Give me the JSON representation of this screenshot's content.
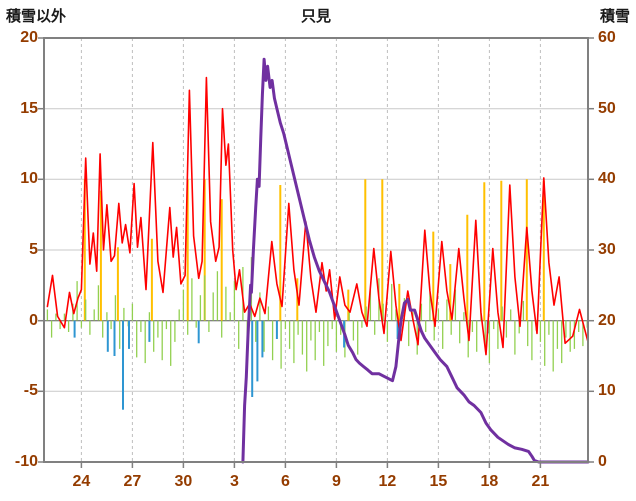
{
  "colors": {
    "red": "#FF0000",
    "orange": "#FFC000",
    "green": "#92D050",
    "blue": "#2E96D2",
    "purple": "#7030A0",
    "grid": "#C9C9C9",
    "grid_dash": "#BFBFBF",
    "border": "#808080",
    "zero_line": "#595959",
    "tick_label": "#943C00",
    "title": "#1A1A1A",
    "background": "#FFFFFF"
  },
  "chart_data": {
    "type": "line",
    "title": "只見",
    "legend": "none",
    "grid": "on",
    "left_axis": {
      "label": "積雪以外",
      "range": [
        -10,
        20
      ],
      "ticks": [
        20,
        15,
        10,
        5,
        0,
        -5,
        -10
      ]
    },
    "right_axis": {
      "label": "積雪",
      "range": [
        0,
        60
      ],
      "ticks": [
        60,
        50,
        40,
        30,
        20,
        10,
        0
      ]
    },
    "x_axis": {
      "range": [
        21.8,
        53.8
      ],
      "ticks": [
        {
          "value": 24,
          "label": "24"
        },
        {
          "value": 27,
          "label": "27"
        },
        {
          "value": 30,
          "label": "30"
        },
        {
          "value": 33,
          "label": "3"
        },
        {
          "value": 36,
          "label": "6"
        },
        {
          "value": 39,
          "label": "9"
        },
        {
          "value": 42,
          "label": "12"
        },
        {
          "value": 45,
          "label": "15"
        },
        {
          "value": 48,
          "label": "18"
        },
        {
          "value": 51,
          "label": "21"
        }
      ]
    },
    "series": [
      {
        "name": "orange-spike-series",
        "axis": "left",
        "render": "spikes",
        "color": "#FFC000",
        "width": 2,
        "points": [
          [
            24.2,
            10
          ],
          [
            25.15,
            9.2
          ],
          [
            26.15,
            5.2
          ],
          [
            28.15,
            5.8
          ],
          [
            30.25,
            10
          ],
          [
            31.25,
            10
          ],
          [
            32.25,
            8.6
          ],
          [
            35.7,
            9.6
          ],
          [
            36.7,
            3.0
          ],
          [
            39.7,
            2.2
          ],
          [
            40.7,
            10
          ],
          [
            41.7,
            10
          ],
          [
            42.7,
            2.6
          ],
          [
            44.7,
            6.3
          ],
          [
            45.7,
            4.0
          ],
          [
            46.7,
            7.5
          ],
          [
            47.7,
            9.8
          ],
          [
            48.7,
            9.9
          ],
          [
            50.2,
            10
          ],
          [
            51.2,
            9.9
          ]
        ]
      },
      {
        "name": "green-noise-series",
        "axis": "left",
        "render": "dense-bars",
        "color": "#92D050",
        "width": 1.3,
        "x0": 22,
        "dx": 0.25,
        "values": [
          0.8,
          -1.2,
          0.5,
          -0.6,
          0.5,
          -0.8,
          1.2,
          2.8,
          -0.5,
          1.5,
          -1.0,
          0.8,
          2.5,
          -1.2,
          0.6,
          -0.6,
          1.8,
          -2.0,
          0.9,
          -0.4,
          1.2,
          -2.6,
          -0.8,
          -3.0,
          0.6,
          -2.2,
          -1.2,
          -2.8,
          -0.6,
          -3.2,
          -1.5,
          0.8,
          2.2,
          -1.0,
          3.0,
          -0.5,
          1.8,
          3.2,
          -0.8,
          2.0,
          3.5,
          -1.2,
          2.4,
          0.6,
          2.8,
          -2.0,
          3.8,
          -2.5,
          4.5,
          -1.5,
          2.0,
          -2.2,
          1.0,
          -2.8,
          -1.2,
          -3.4,
          -0.6,
          -2.0,
          -3.0,
          -1.0,
          -2.4,
          -3.6,
          -1.4,
          -2.8,
          -0.8,
          -3.2,
          -1.8,
          -0.6,
          -2.2,
          -1.0,
          -2.6,
          0.6,
          -1.4,
          -2.4,
          -0.5,
          1.0,
          2.2,
          -1.0,
          3.0,
          1.2,
          -1.5,
          2.6,
          0.8,
          -0.8,
          1.6,
          -1.8,
          0.6,
          -2.4,
          1.2,
          -0.8,
          2.0,
          -1.4,
          0.8,
          -2.0,
          1.5,
          -1.0,
          2.2,
          -1.6,
          0.6,
          -2.6,
          -0.8,
          -2.2,
          0.9,
          -1.8,
          -3.0,
          -0.6,
          -2.0,
          1.0,
          -1.2,
          0.8,
          -2.4,
          -0.9,
          1.4,
          -1.8,
          -2.8,
          -0.7,
          -1.5,
          -3.2,
          -1.0,
          -3.6,
          -2.0,
          -3.0,
          -1.2,
          -2.2,
          -2.0,
          -0.8,
          -1.8,
          -0.5
        ]
      },
      {
        "name": "blue-spike-series",
        "axis": "left",
        "render": "spikes",
        "color": "#2E96D2",
        "width": 2,
        "points": [
          [
            23.6,
            -1.2
          ],
          [
            25.55,
            -2.2
          ],
          [
            25.95,
            -2.5
          ],
          [
            26.45,
            -6.3
          ],
          [
            26.8,
            -2.0
          ],
          [
            28.0,
            -1.5
          ],
          [
            30.9,
            -1.6
          ],
          [
            34.05,
            -5.4
          ],
          [
            34.35,
            -4.3
          ],
          [
            34.65,
            -2.6
          ],
          [
            35.5,
            -1.3
          ],
          [
            39.45,
            -1.9
          ],
          [
            42.6,
            -1.3
          ],
          [
            47.9,
            -0.9
          ]
        ]
      },
      {
        "name": "red-line-series",
        "axis": "left",
        "render": "line",
        "color": "#FF0000",
        "width": 1.6,
        "points": [
          [
            22.0,
            1.0
          ],
          [
            22.3,
            3.2
          ],
          [
            22.6,
            0.3
          ],
          [
            23.0,
            -0.5
          ],
          [
            23.3,
            2.0
          ],
          [
            23.55,
            0.5
          ],
          [
            23.8,
            1.6
          ],
          [
            24.0,
            2.2
          ],
          [
            24.25,
            11.5
          ],
          [
            24.5,
            4.0
          ],
          [
            24.7,
            6.2
          ],
          [
            24.9,
            3.5
          ],
          [
            25.1,
            11.8
          ],
          [
            25.3,
            5.0
          ],
          [
            25.5,
            8.2
          ],
          [
            25.75,
            4.2
          ],
          [
            25.95,
            4.6
          ],
          [
            26.2,
            8.3
          ],
          [
            26.4,
            5.5
          ],
          [
            26.6,
            6.8
          ],
          [
            26.85,
            4.8
          ],
          [
            27.1,
            9.7
          ],
          [
            27.3,
            5.2
          ],
          [
            27.5,
            7.3
          ],
          [
            27.8,
            2.2
          ],
          [
            28.2,
            12.6
          ],
          [
            28.5,
            4.2
          ],
          [
            28.8,
            2.0
          ],
          [
            29.2,
            8.0
          ],
          [
            29.4,
            4.5
          ],
          [
            29.6,
            6.6
          ],
          [
            29.85,
            2.6
          ],
          [
            30.1,
            3.2
          ],
          [
            30.35,
            16.3
          ],
          [
            30.6,
            6.0
          ],
          [
            30.9,
            3.0
          ],
          [
            31.1,
            4.2
          ],
          [
            31.35,
            17.2
          ],
          [
            31.6,
            7.0
          ],
          [
            31.9,
            4.2
          ],
          [
            32.1,
            5.2
          ],
          [
            32.3,
            15.0
          ],
          [
            32.5,
            11.0
          ],
          [
            32.65,
            12.5
          ],
          [
            32.9,
            5.0
          ],
          [
            33.1,
            2.2
          ],
          [
            33.3,
            3.6
          ],
          [
            33.6,
            0.6
          ],
          [
            33.9,
            1.2
          ],
          [
            34.2,
            0.3
          ],
          [
            34.5,
            1.6
          ],
          [
            34.8,
            0.5
          ],
          [
            35.2,
            5.6
          ],
          [
            35.5,
            2.6
          ],
          [
            35.8,
            1.0
          ],
          [
            36.2,
            8.3
          ],
          [
            36.5,
            3.6
          ],
          [
            36.8,
            1.1
          ],
          [
            37.2,
            7.0
          ],
          [
            37.5,
            3.0
          ],
          [
            37.8,
            0.6
          ],
          [
            38.15,
            4.1
          ],
          [
            38.4,
            2.1
          ],
          [
            38.6,
            3.6
          ],
          [
            38.9,
            0.1
          ],
          [
            39.2,
            3.1
          ],
          [
            39.5,
            1.1
          ],
          [
            39.8,
            0.6
          ],
          [
            40.2,
            2.6
          ],
          [
            40.5,
            0.6
          ],
          [
            40.8,
            -0.4
          ],
          [
            41.2,
            5.1
          ],
          [
            41.5,
            1.6
          ],
          [
            41.8,
            -0.9
          ],
          [
            42.2,
            4.9
          ],
          [
            42.5,
            1.1
          ],
          [
            42.8,
            -1.4
          ],
          [
            43.2,
            2.1
          ],
          [
            43.5,
            0.1
          ],
          [
            43.8,
            -1.7
          ],
          [
            44.2,
            6.4
          ],
          [
            44.5,
            2.1
          ],
          [
            44.8,
            -0.4
          ],
          [
            45.2,
            5.6
          ],
          [
            45.5,
            2.1
          ],
          [
            45.8,
            0.1
          ],
          [
            46.2,
            5.1
          ],
          [
            46.5,
            1.6
          ],
          [
            46.8,
            -1.4
          ],
          [
            47.2,
            7.1
          ],
          [
            47.5,
            0.6
          ],
          [
            47.8,
            -2.4
          ],
          [
            48.2,
            5.1
          ],
          [
            48.5,
            0.6
          ],
          [
            48.8,
            -1.9
          ],
          [
            49.2,
            9.6
          ],
          [
            49.5,
            3.1
          ],
          [
            49.8,
            -0.4
          ],
          [
            50.2,
            6.6
          ],
          [
            50.5,
            2.1
          ],
          [
            50.8,
            -0.9
          ],
          [
            51.2,
            10.1
          ],
          [
            51.5,
            4.1
          ],
          [
            51.8,
            1.1
          ],
          [
            52.1,
            3.1
          ],
          [
            52.45,
            -1.6
          ],
          [
            52.9,
            -1.1
          ],
          [
            53.3,
            0.8
          ],
          [
            53.8,
            -1.5
          ]
        ]
      },
      {
        "name": "purple-line-series",
        "axis": "right",
        "render": "line",
        "color": "#7030A0",
        "width": 3,
        "points": [
          [
            33.5,
            0
          ],
          [
            33.6,
            8
          ],
          [
            33.7,
            12
          ],
          [
            33.8,
            18
          ],
          [
            33.95,
            25
          ],
          [
            34.0,
            24
          ],
          [
            34.12,
            30
          ],
          [
            34.25,
            36
          ],
          [
            34.35,
            40
          ],
          [
            34.45,
            39
          ],
          [
            34.55,
            46
          ],
          [
            34.65,
            52
          ],
          [
            34.75,
            57
          ],
          [
            34.85,
            54
          ],
          [
            34.95,
            56
          ],
          [
            35.1,
            53
          ],
          [
            35.22,
            54
          ],
          [
            35.35,
            51.5
          ],
          [
            35.5,
            50
          ],
          [
            35.7,
            48
          ],
          [
            35.9,
            46.5
          ],
          [
            36.1,
            44.5
          ],
          [
            36.3,
            42.5
          ],
          [
            36.5,
            40.5
          ],
          [
            36.8,
            37.5
          ],
          [
            37.1,
            34.5
          ],
          [
            37.4,
            31.5
          ],
          [
            37.7,
            29
          ],
          [
            38.0,
            27
          ],
          [
            38.3,
            25.5
          ],
          [
            38.6,
            24
          ],
          [
            38.9,
            22
          ],
          [
            39.2,
            20
          ],
          [
            39.5,
            18
          ],
          [
            39.7,
            16.5
          ],
          [
            39.95,
            15.5
          ],
          [
            40.15,
            14.5
          ],
          [
            40.35,
            14
          ],
          [
            40.6,
            13.5
          ],
          [
            40.85,
            13
          ],
          [
            41.1,
            12.5
          ],
          [
            41.5,
            12.5
          ],
          [
            41.9,
            12
          ],
          [
            42.3,
            11.5
          ],
          [
            42.5,
            13.5
          ],
          [
            42.65,
            17
          ],
          [
            42.8,
            20
          ],
          [
            43.0,
            22.5
          ],
          [
            43.2,
            23
          ],
          [
            43.35,
            21.5
          ],
          [
            43.6,
            21.5
          ],
          [
            43.8,
            20
          ],
          [
            44.0,
            18.5
          ],
          [
            44.2,
            17.5
          ],
          [
            44.5,
            16.5
          ],
          [
            44.8,
            15.5
          ],
          [
            45.1,
            14.5
          ],
          [
            45.5,
            13.5
          ],
          [
            45.8,
            12
          ],
          [
            46.1,
            10.5
          ],
          [
            46.5,
            9.5
          ],
          [
            46.8,
            8.5
          ],
          [
            47.1,
            8
          ],
          [
            47.5,
            7
          ],
          [
            47.8,
            5.5
          ],
          [
            48.1,
            4.5
          ],
          [
            48.5,
            3.5
          ],
          [
            48.8,
            3
          ],
          [
            49.1,
            2.5
          ],
          [
            49.5,
            2
          ],
          [
            49.9,
            1.8
          ],
          [
            50.3,
            1.5
          ],
          [
            50.5,
            0.8
          ],
          [
            50.65,
            0.2
          ],
          [
            50.9,
            0
          ],
          [
            53.8,
            0
          ]
        ]
      }
    ]
  }
}
